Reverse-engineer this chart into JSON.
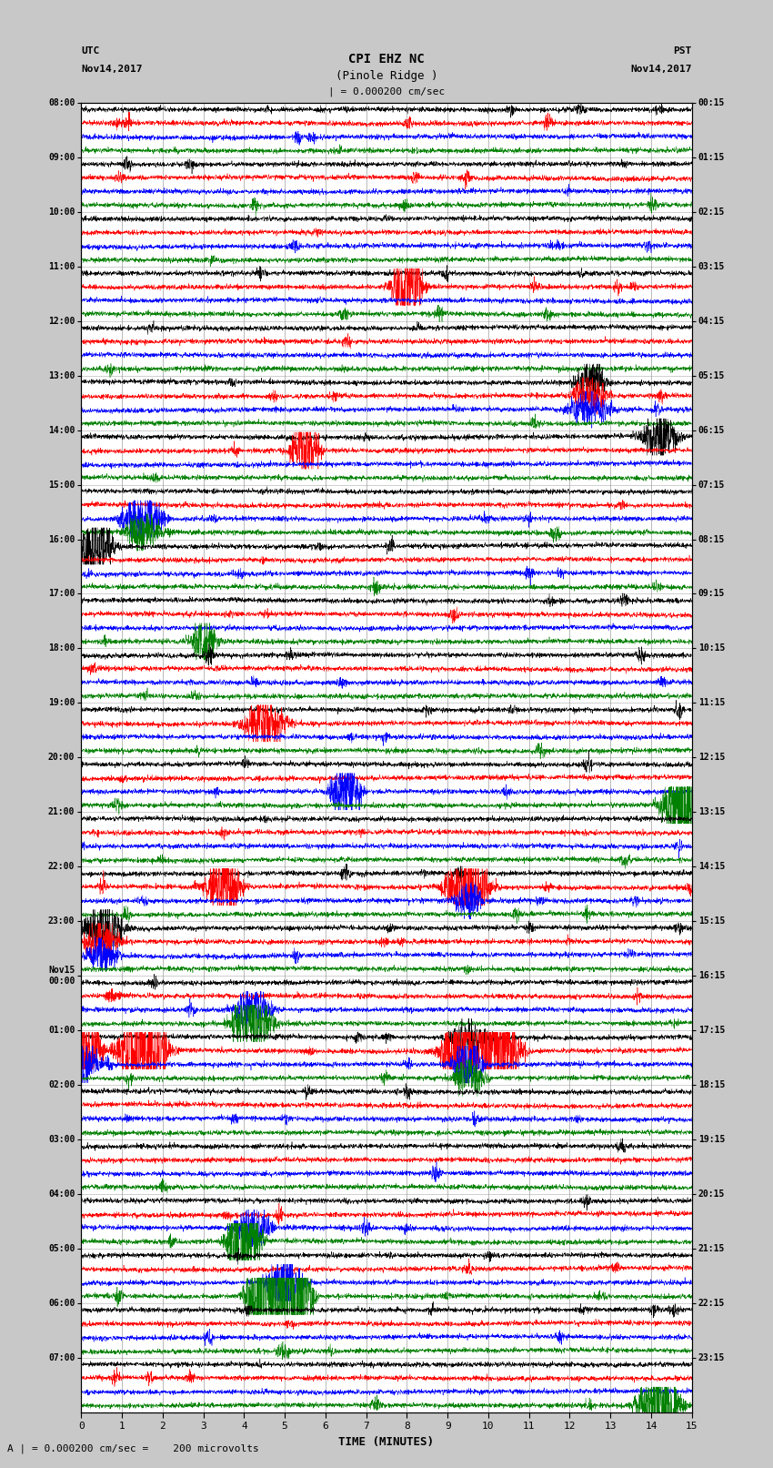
{
  "title_line1": "CPI EHZ NC",
  "title_line2": "(Pinole Ridge )",
  "title_line3": "| = 0.000200 cm/sec",
  "utc_label_line1": "UTC",
  "utc_label_line2": "Nov14,2017",
  "pst_label_line1": "PST",
  "pst_label_line2": "Nov14,2017",
  "xlabel": "TIME (MINUTES)",
  "footnote": "A | = 0.000200 cm/sec =    200 microvolts",
  "utc_times": [
    "08:00",
    "09:00",
    "10:00",
    "11:00",
    "12:00",
    "13:00",
    "14:00",
    "15:00",
    "16:00",
    "17:00",
    "18:00",
    "19:00",
    "20:00",
    "21:00",
    "22:00",
    "23:00",
    "Nov15\n00:00",
    "01:00",
    "02:00",
    "03:00",
    "04:00",
    "05:00",
    "06:00",
    "07:00"
  ],
  "pst_times": [
    "00:15",
    "01:15",
    "02:15",
    "03:15",
    "04:15",
    "05:15",
    "06:15",
    "07:15",
    "08:15",
    "09:15",
    "10:15",
    "11:15",
    "12:15",
    "13:15",
    "14:15",
    "15:15",
    "16:15",
    "17:15",
    "18:15",
    "19:15",
    "20:15",
    "21:15",
    "22:15",
    "23:15"
  ],
  "n_rows": 24,
  "n_traces_per_row": 4,
  "trace_colors": [
    "black",
    "red",
    "blue",
    "green"
  ],
  "x_min": 0,
  "x_max": 15,
  "x_ticks": [
    0,
    1,
    2,
    3,
    4,
    5,
    6,
    7,
    8,
    9,
    10,
    11,
    12,
    13,
    14,
    15
  ],
  "background_color": "#c8c8c8",
  "plot_bg_color": "white",
  "noise_scale": 0.03,
  "vgrid_color": "#888888",
  "hgrid_color": "#888888",
  "fig_width": 8.5,
  "fig_height": 16.13,
  "dpi": 100,
  "special_events": [
    [
      3,
      1,
      8.0,
      12
    ],
    [
      5,
      0,
      12.5,
      6
    ],
    [
      5,
      1,
      12.5,
      5
    ],
    [
      5,
      2,
      12.5,
      4
    ],
    [
      6,
      0,
      14.2,
      6
    ],
    [
      6,
      1,
      5.5,
      10
    ],
    [
      7,
      2,
      1.5,
      8
    ],
    [
      7,
      3,
      1.5,
      5
    ],
    [
      8,
      0,
      0.3,
      8
    ],
    [
      9,
      3,
      3.0,
      5
    ],
    [
      11,
      1,
      4.5,
      6
    ],
    [
      12,
      2,
      6.5,
      8
    ],
    [
      12,
      3,
      14.8,
      15
    ],
    [
      14,
      1,
      3.5,
      10
    ],
    [
      14,
      1,
      9.5,
      10
    ],
    [
      14,
      2,
      9.5,
      5
    ],
    [
      15,
      0,
      0.5,
      6
    ],
    [
      15,
      1,
      0.5,
      5
    ],
    [
      15,
      2,
      0.5,
      4
    ],
    [
      16,
      3,
      4.2,
      8
    ],
    [
      16,
      2,
      4.2,
      5
    ],
    [
      17,
      1,
      0.0,
      20
    ],
    [
      17,
      1,
      1.5,
      18
    ],
    [
      17,
      2,
      0.0,
      6
    ],
    [
      17,
      1,
      9.5,
      20
    ],
    [
      17,
      1,
      10.2,
      18
    ],
    [
      17,
      2,
      9.5,
      8
    ],
    [
      17,
      3,
      9.5,
      5
    ],
    [
      17,
      0,
      9.5,
      4
    ],
    [
      20,
      3,
      4.0,
      20
    ],
    [
      20,
      2,
      4.2,
      5
    ],
    [
      21,
      3,
      4.5,
      35
    ],
    [
      21,
      3,
      5.2,
      28
    ],
    [
      21,
      2,
      5.0,
      8
    ],
    [
      23,
      3,
      14.2,
      12
    ]
  ]
}
